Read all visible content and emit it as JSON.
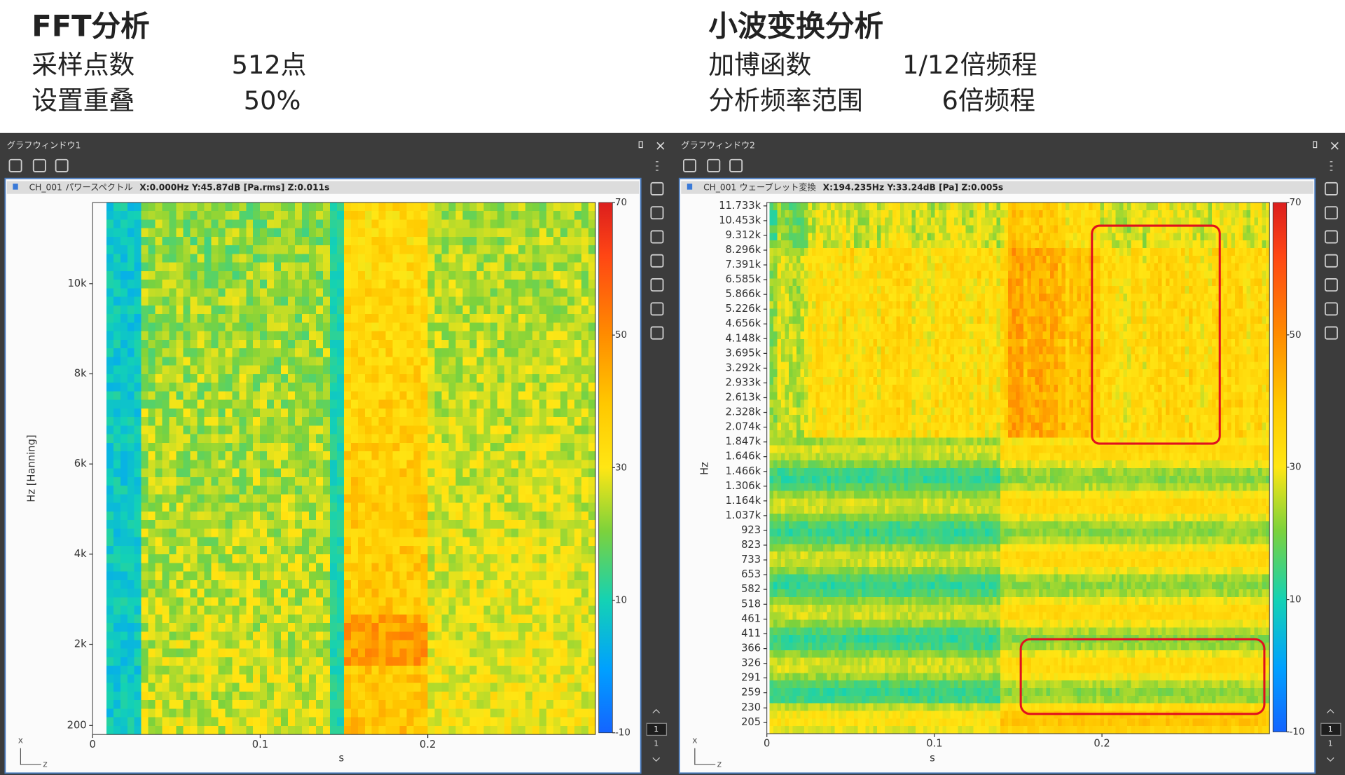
{
  "header": {
    "left": {
      "title": "FFT分析",
      "rows": [
        [
          "采样点数",
          "512点"
        ],
        [
          "设置重叠",
          "50%"
        ]
      ]
    },
    "right": {
      "title": "小波变换分析",
      "rows": [
        [
          "加博函数",
          "1/12倍频程"
        ],
        [
          "分析频率范围",
          "6倍频程"
        ]
      ]
    }
  },
  "windows": [
    {
      "title": "グラフウィンドウ1",
      "status": {
        "channel": "CH_001",
        "kind": "パワースペクトル",
        "readout": "X:0.000Hz Y:45.87dB [Pa.rms] Z:0.011s"
      },
      "chart": {
        "type": "heatmap",
        "y_label": "Hz [Hanning]",
        "x_label": "s",
        "xlim": [
          0,
          0.3
        ],
        "xticks": [
          0,
          0.1,
          0.2
        ],
        "yscale": "linear",
        "ylim": [
          0,
          11800
        ],
        "yticks": [
          200,
          {
            "value": 2000,
            "label": "2k"
          },
          {
            "value": 4000,
            "label": "4k"
          },
          {
            "value": 6000,
            "label": "6k"
          },
          {
            "value": 8000,
            "label": "8k"
          },
          {
            "value": 10000,
            "label": "10k"
          }
        ],
        "colorbar": {
          "lim": [
            -10,
            70
          ],
          "ticks": [
            70,
            50,
            30,
            10,
            -10
          ]
        }
      },
      "axis_triad": [
        "x",
        "z"
      ],
      "page": {
        "current": "1",
        "total": "1"
      }
    },
    {
      "title": "グラフウィンドウ2",
      "status": {
        "channel": "CH_001",
        "kind": "ウェーブレット変換",
        "readout": "X:194.235Hz Y:33.24dB [Pa] Z:0.005s"
      },
      "chart": {
        "type": "heatmap",
        "y_label": "Hz",
        "x_label": "s",
        "xlim": [
          0,
          0.3
        ],
        "xticks": [
          0,
          0.1,
          0.2
        ],
        "yscale": "log",
        "ylim": [
          188,
          12050
        ],
        "yticks": [
          205,
          230,
          259,
          291,
          326,
          366,
          411,
          461,
          518,
          582,
          653,
          733,
          823,
          923,
          {
            "value": 1037,
            "label": "1.037k"
          },
          {
            "value": 1164,
            "label": "1.164k"
          },
          {
            "value": 1306,
            "label": "1.306k"
          },
          {
            "value": 1466,
            "label": "1.466k"
          },
          {
            "value": 1646,
            "label": "1.646k"
          },
          {
            "value": 1847,
            "label": "1.847k"
          },
          {
            "value": 2074,
            "label": "2.074k"
          },
          {
            "value": 2328,
            "label": "2.328k"
          },
          {
            "value": 2613,
            "label": "2.613k"
          },
          {
            "value": 2933,
            "label": "2.933k"
          },
          {
            "value": 3292,
            "label": "3.292k"
          },
          {
            "value": 3695,
            "label": "3.695k"
          },
          {
            "value": 4148,
            "label": "4.148k"
          },
          {
            "value": 4656,
            "label": "4.656k"
          },
          {
            "value": 5226,
            "label": "5.226k"
          },
          {
            "value": 5866,
            "label": "5.866k"
          },
          {
            "value": 6585,
            "label": "6.585k"
          },
          {
            "value": 7391,
            "label": "7.391k"
          },
          {
            "value": 8296,
            "label": "8.296k"
          },
          {
            "value": 9312,
            "label": "9.312k"
          },
          {
            "value": 10453,
            "label": "10.453k"
          },
          {
            "value": 11733,
            "label": "11.733k"
          }
        ],
        "colorbar": {
          "lim": [
            -10,
            70
          ],
          "ticks": [
            70,
            50,
            30,
            10,
            -10
          ]
        }
      },
      "axis_triad": [
        "x",
        "z"
      ],
      "page": {
        "current": "1",
        "total": "1"
      }
    }
  ]
}
